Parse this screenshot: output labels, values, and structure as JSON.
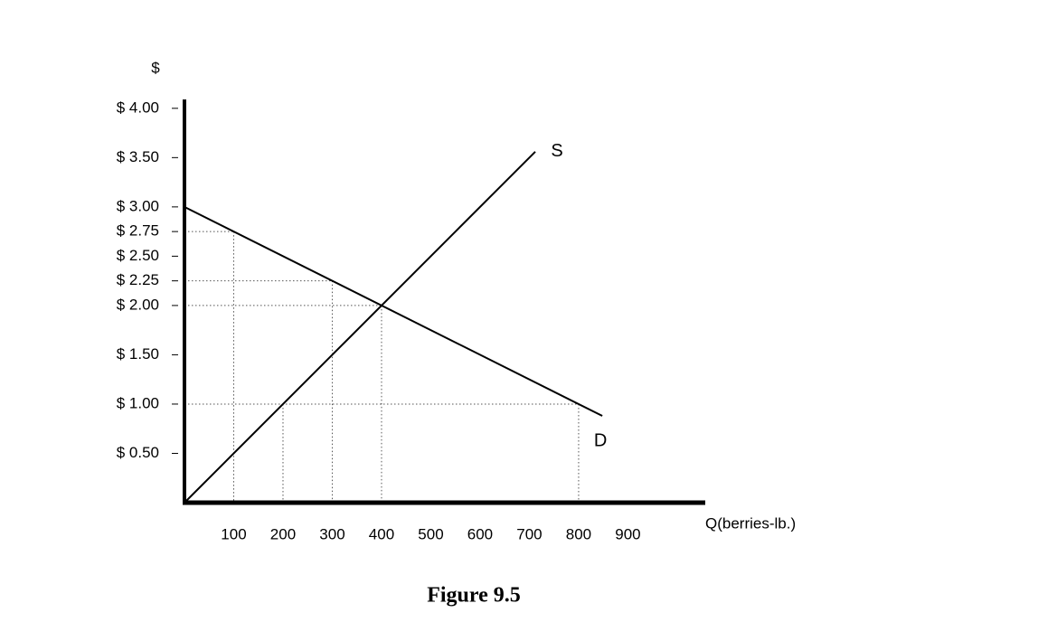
{
  "chart_data": {
    "type": "line",
    "caption": "Figure 9.5",
    "y_label": "$",
    "x_label": "Q(berries-lb.)",
    "xlim": [
      0,
      1057
    ],
    "ylim": [
      0,
      4.09
    ],
    "xticks": [
      100,
      200,
      300,
      400,
      500,
      600,
      700,
      800,
      900
    ],
    "yticks": [
      {
        "value": 0.5,
        "label": "$ 0.50"
      },
      {
        "value": 1,
        "label": "$ 1.00"
      },
      {
        "value": 1.5,
        "label": "$ 1.50"
      },
      {
        "value": 2,
        "label": "$ 2.00"
      },
      {
        "value": 2.25,
        "label": "$ 2.25"
      },
      {
        "value": 2.5,
        "label": "$ 2.50"
      },
      {
        "value": 2.75,
        "label": "$ 2.75"
      },
      {
        "value": 3,
        "label": "$ 3.00"
      },
      {
        "value": 3.5,
        "label": "$ 3.50"
      },
      {
        "value": 4,
        "label": "$ 4.00"
      }
    ],
    "series": [
      {
        "name": "S",
        "color": "#000000",
        "x": [
          0,
          712
        ],
        "values": [
          0,
          3.56
        ]
      },
      {
        "name": "D",
        "color": "#000000",
        "x": [
          0,
          848
        ],
        "values": [
          3,
          0.88
        ]
      }
    ],
    "guides": [
      {
        "x": 100,
        "y": 2.75
      },
      {
        "x": 200,
        "y": 1
      },
      {
        "x": 300,
        "y": 2.25
      },
      {
        "x": 400,
        "y": 2
      },
      {
        "x": 800,
        "y": 1
      }
    ]
  }
}
